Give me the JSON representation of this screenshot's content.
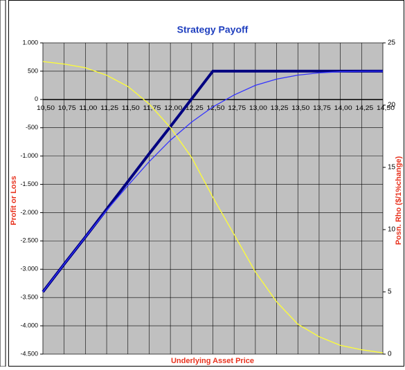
{
  "chart_data": {
    "type": "line",
    "title": "Strategy Payoff",
    "xlabel": "Underlying Asset Price",
    "ylabel": "Profit or Loss",
    "y2label": "Posn. Rho ($/1%change)",
    "x": [
      10.5,
      10.75,
      11.0,
      11.25,
      11.5,
      11.75,
      12.0,
      12.25,
      12.5,
      12.75,
      13.0,
      13.25,
      13.5,
      13.75,
      14.0,
      14.25,
      14.5
    ],
    "xlim": [
      10.5,
      14.5
    ],
    "xticks": [
      {
        "value": 10.5,
        "label": "10,50"
      },
      {
        "value": 10.75,
        "label": "10,75"
      },
      {
        "value": 11.0,
        "label": "11,00"
      },
      {
        "value": 11.25,
        "label": "11,25"
      },
      {
        "value": 11.5,
        "label": "11,50"
      },
      {
        "value": 11.75,
        "label": "11,75"
      },
      {
        "value": 12.0,
        "label": "12,00"
      },
      {
        "value": 12.25,
        "label": "12,25"
      },
      {
        "value": 12.5,
        "label": "12,50"
      },
      {
        "value": 12.75,
        "label": "12,75"
      },
      {
        "value": 13.0,
        "label": "13,00"
      },
      {
        "value": 13.25,
        "label": "13,25"
      },
      {
        "value": 13.5,
        "label": "13,50"
      },
      {
        "value": 13.75,
        "label": "13,75"
      },
      {
        "value": 14.0,
        "label": "14,00"
      },
      {
        "value": 14.25,
        "label": "14,25"
      },
      {
        "value": 14.5,
        "label": "14,50"
      }
    ],
    "ylim": [
      -4500,
      1000
    ],
    "yticks": [
      {
        "value": 1000,
        "label": "1.000"
      },
      500,
      0,
      -500,
      {
        "value": -1000,
        "label": "-1.000"
      },
      {
        "value": -1500,
        "label": "-1.500"
      },
      {
        "value": -2000,
        "label": "-2.000"
      },
      {
        "value": -2500,
        "label": "-2.500"
      },
      {
        "value": -3000,
        "label": "-3.000"
      },
      {
        "value": -3500,
        "label": "-3.500"
      },
      {
        "value": -4000,
        "label": "-4.000"
      },
      {
        "value": -4500,
        "label": "-4.500"
      }
    ],
    "y2lim": [
      0,
      25
    ],
    "y2ticks": [
      0,
      5,
      10,
      15,
      20,
      25
    ],
    "grid": true,
    "background": "#c0c0c0",
    "series": [
      {
        "color": "#000080",
        "line_width": 4,
        "values": [
          -3400,
          -2910,
          -2430,
          -1940,
          -1450,
          -960,
          -480,
          10,
          500,
          500,
          500,
          500,
          500,
          500,
          500,
          500,
          500
        ]
      },
      {
        "color": "#3333ff",
        "line_width": 1.3,
        "values": [
          -3400,
          -2910,
          -2430,
          -1960,
          -1520,
          -1100,
          -720,
          -400,
          -130,
          80,
          250,
          360,
          430,
          470,
          490,
          498,
          500
        ]
      },
      {
        "color": "#ffff33",
        "line_width": 1.3,
        "axis": "y2",
        "values": [
          23.5,
          23.3,
          23.0,
          22.4,
          21.5,
          20.1,
          18.2,
          15.8,
          12.6,
          9.6,
          6.6,
          4.2,
          2.4,
          1.4,
          0.7,
          0.35,
          0.1
        ]
      }
    ]
  }
}
